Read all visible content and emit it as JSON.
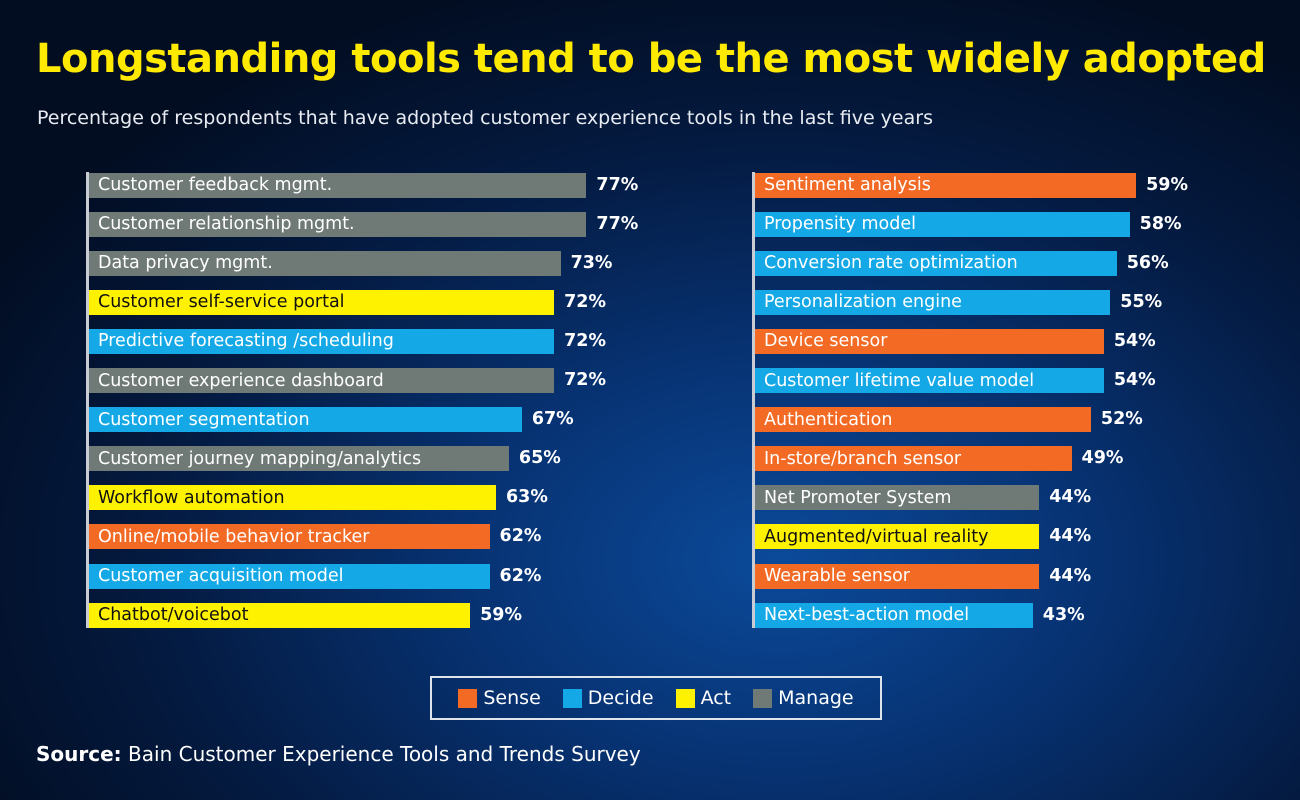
{
  "title": "Longstanding tools tend to be the most widely adopted",
  "subtitle": "Percentage of respondents that have adopted customer experience tools in the last five years",
  "source_label": "Source:",
  "source_text": "Bain Customer Experience Tools and Trends Survey",
  "colors": {
    "Sense": "#f26a24",
    "Decide": "#14a9e6",
    "Act": "#fff200",
    "Manage": "#6f7a77"
  },
  "chart_data": [
    {
      "type": "bar",
      "orientation": "horizontal",
      "unit": "%",
      "xlim": [
        0,
        100
      ],
      "categories": [
        "Customer feedback mgmt.",
        "Customer relationship mgmt.",
        "Data privacy mgmt.",
        "Customer self-service portal",
        "Predictive forecasting /scheduling",
        "Customer experience dashboard",
        "Customer segmentation",
        "Customer journey mapping/analytics",
        "Workflow automation",
        "Online/mobile behavior tracker",
        "Customer acquisition model",
        "Chatbot/voicebot"
      ],
      "values": [
        77,
        77,
        73,
        72,
        72,
        72,
        67,
        65,
        63,
        62,
        62,
        59
      ],
      "groups": [
        "Manage",
        "Manage",
        "Manage",
        "Act",
        "Decide",
        "Manage",
        "Decide",
        "Manage",
        "Act",
        "Sense",
        "Decide",
        "Act"
      ]
    },
    {
      "type": "bar",
      "orientation": "horizontal",
      "unit": "%",
      "xlim": [
        0,
        100
      ],
      "categories": [
        "Sentiment analysis",
        "Propensity model",
        "Conversion rate optimization",
        "Personalization engine",
        "Device sensor",
        "Customer lifetime value model",
        "Authentication",
        "In-store/branch sensor",
        "Net Promoter System",
        "Augmented/virtual reality",
        "Wearable sensor",
        "Next-best-action model"
      ],
      "values": [
        59,
        58,
        56,
        55,
        54,
        54,
        52,
        49,
        44,
        44,
        44,
        43
      ],
      "groups": [
        "Sense",
        "Decide",
        "Decide",
        "Decide",
        "Sense",
        "Decide",
        "Sense",
        "Sense",
        "Manage",
        "Act",
        "Sense",
        "Decide"
      ]
    }
  ],
  "legend": [
    {
      "label": "Sense",
      "color": "#f26a24"
    },
    {
      "label": "Decide",
      "color": "#14a9e6"
    },
    {
      "label": "Act",
      "color": "#fff200"
    },
    {
      "label": "Manage",
      "color": "#6f7a77"
    }
  ],
  "legend_placement": "bottom-center"
}
